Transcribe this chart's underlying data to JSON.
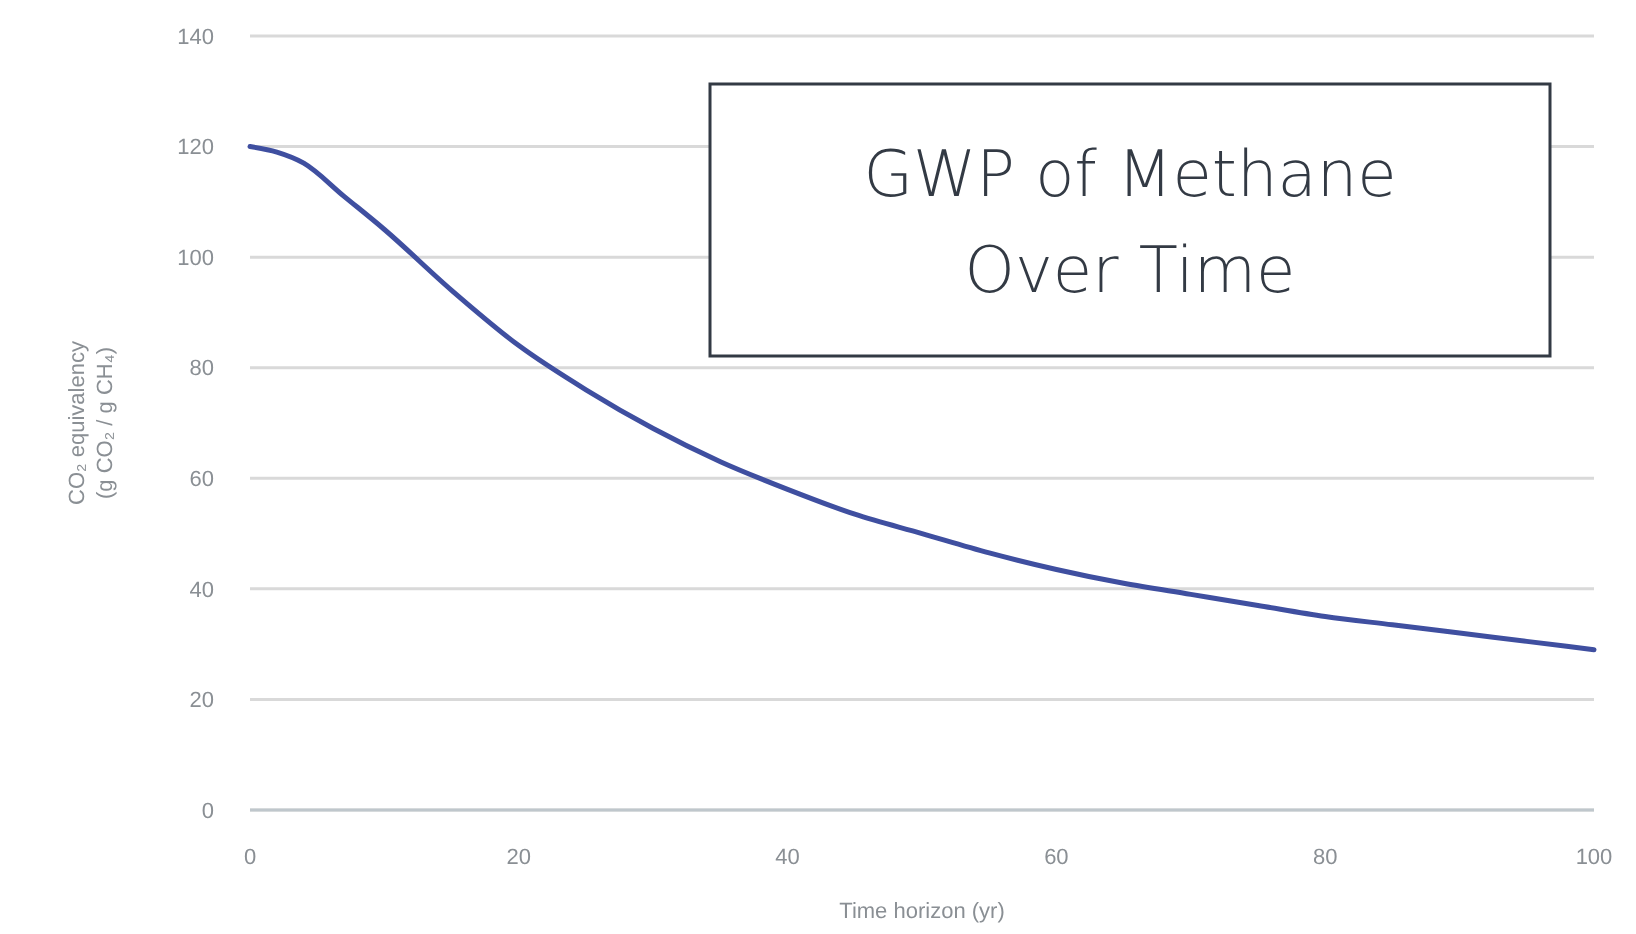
{
  "chart_data": {
    "type": "line",
    "title": "GWP of Methane Over Time",
    "xlabel": "Time horizon (yr)",
    "ylabel": "CO₂ equivalency (g CO₂ / g CH₄)",
    "x": [
      0,
      2,
      4,
      7,
      10,
      15,
      20,
      25,
      30,
      35,
      40,
      45,
      50,
      55,
      60,
      65,
      70,
      75,
      80,
      85,
      90,
      95,
      100
    ],
    "series": [
      {
        "color": "#3f4fa0",
        "values": [
          120,
          119,
          117,
          111,
          105,
          94,
          84,
          76,
          69,
          63,
          58,
          53.5,
          50,
          46.5,
          43.5,
          41,
          39,
          37,
          35,
          33.5,
          32,
          30.5,
          29
        ]
      }
    ],
    "xlim": [
      0,
      100
    ],
    "ylim": [
      0,
      140
    ],
    "xticks": [
      0,
      20,
      40,
      60,
      80,
      100
    ],
    "yticks": [
      0,
      20,
      40,
      60,
      80,
      100,
      120,
      140
    ],
    "grid": "y",
    "marker": "none",
    "line_style": "solid"
  }
}
